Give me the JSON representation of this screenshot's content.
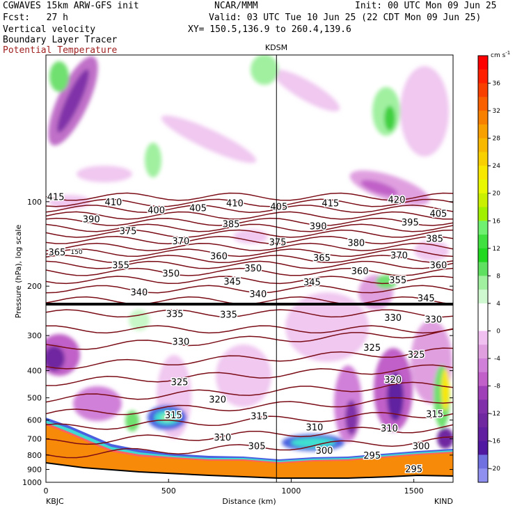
{
  "header": {
    "model": "CGWAVES 15km ARW-GFS init",
    "org": "NCAR/MMM",
    "init": "Init: 00 UTC Mon 09 Jun 25",
    "fcst": "Fcst:   27 h",
    "valid": "Valid: 03 UTC Tue 10 Jun 25 (22 CDT Mon 09 Jun 25)",
    "field1": "Vertical velocity",
    "field2": "Boundary Layer Tracer",
    "field3": "Potential Temperature",
    "xy": "XY= 150.5,136.9 to 260.4,139.6"
  },
  "colors": {
    "theta": "#7a0c16",
    "terrain": "#f88a0a",
    "tropopause": "#000000"
  },
  "chart_data": {
    "type": "heatmap",
    "xlabel": "Distance (km)",
    "ylabel": "Pressure (hPa), log scale",
    "xlim": [
      0,
      1660
    ],
    "ylim": [
      1000,
      30
    ],
    "yscale": "log",
    "x_ticks": [
      "0",
      "500",
      "1000",
      "1500"
    ],
    "y_ticks": [
      "100",
      "200",
      "300",
      "400",
      "500",
      "600",
      "700",
      "800",
      "900",
      "1000"
    ],
    "y_tick_values": [
      100,
      200,
      300,
      400,
      500,
      600,
      700,
      800,
      900,
      1000
    ],
    "x_tick_values": [
      0,
      500,
      1000,
      1500
    ],
    "left_station": "KBJC",
    "right_station": "KIND",
    "mid_station": "KDSM",
    "mid_station_km": 940,
    "colorbar": {
      "unit": "cm s",
      "unit_exp": "-1",
      "labels": [
        "36",
        "32",
        "28",
        "24",
        "20",
        "16",
        "12",
        "8",
        "4",
        "0",
        "-4",
        "-8",
        "-12",
        "-16",
        "-20"
      ],
      "values": [
        36,
        32,
        28,
        24,
        20,
        16,
        12,
        8,
        4,
        0,
        -4,
        -8,
        -12,
        -16,
        -20
      ],
      "colors": [
        "#ff0000",
        "#ff2000",
        "#f84000",
        "#f86000",
        "#f88000",
        "#f8a000",
        "#f8b800",
        "#f8d000",
        "#f8e800",
        "#e8f800",
        "#c8f000",
        "#a0f000",
        "#70f070",
        "#40e040",
        "#20d820",
        "#60e060",
        "#a0f0a0",
        "#d0f8d0",
        "#ffffff",
        "#ffffff",
        "#f0c0f0",
        "#e0a0e0",
        "#d080d8",
        "#c060c8",
        "#a040b8",
        "#8030a8",
        "#7028a0",
        "#6020a0",
        "#5018a0",
        "#7070e0",
        "#9090f0"
      ]
    },
    "theta_labels": [
      {
        "t": "415",
        "x": 40,
        "p": 96
      },
      {
        "t": "410",
        "x": 275,
        "p": 100
      },
      {
        "t": "410",
        "x": 770,
        "p": 101
      },
      {
        "t": "415",
        "x": 1160,
        "p": 101
      },
      {
        "t": "420",
        "x": 1430,
        "p": 98
      },
      {
        "t": "390",
        "x": 185,
        "p": 115
      },
      {
        "t": "400",
        "x": 450,
        "p": 107
      },
      {
        "t": "405",
        "x": 620,
        "p": 105
      },
      {
        "t": "405",
        "x": 950,
        "p": 104
      },
      {
        "t": "405",
        "x": 1600,
        "p": 110
      },
      {
        "t": "395",
        "x": 1485,
        "p": 118
      },
      {
        "t": "385",
        "x": 755,
        "p": 120
      },
      {
        "t": "390",
        "x": 1110,
        "p": 122
      },
      {
        "t": "375",
        "x": 335,
        "p": 127
      },
      {
        "t": "370",
        "x": 550,
        "p": 138
      },
      {
        "t": "375",
        "x": 945,
        "p": 139
      },
      {
        "t": "380",
        "x": 1265,
        "p": 140
      },
      {
        "t": "385",
        "x": 1585,
        "p": 135
      },
      {
        "t": "365",
        "x": 45,
        "p": 151
      },
      {
        "t": "360",
        "x": 705,
        "p": 156
      },
      {
        "t": "365",
        "x": 1125,
        "p": 158
      },
      {
        "t": "370",
        "x": 1440,
        "p": 155
      },
      {
        "t": "355",
        "x": 305,
        "p": 168
      },
      {
        "t": "350",
        "x": 845,
        "p": 172
      },
      {
        "t": "360",
        "x": 1280,
        "p": 176
      },
      {
        "t": "360",
        "x": 1600,
        "p": 168
      },
      {
        "t": "350",
        "x": 510,
        "p": 180
      },
      {
        "t": "345",
        "x": 760,
        "p": 192
      },
      {
        "t": "345",
        "x": 1085,
        "p": 193
      },
      {
        "t": "355",
        "x": 1435,
        "p": 190
      },
      {
        "t": "340",
        "x": 380,
        "p": 210
      },
      {
        "t": "340",
        "x": 865,
        "p": 213
      },
      {
        "t": "345",
        "x": 1550,
        "p": 220
      },
      {
        "t": "335",
        "x": 525,
        "p": 250
      },
      {
        "t": "335",
        "x": 745,
        "p": 252
      },
      {
        "t": "330",
        "x": 1415,
        "p": 258
      },
      {
        "t": "330",
        "x": 1580,
        "p": 262
      },
      {
        "t": "330",
        "x": 550,
        "p": 315
      },
      {
        "t": "325",
        "x": 1330,
        "p": 330
      },
      {
        "t": "325",
        "x": 1510,
        "p": 350
      },
      {
        "t": "320",
        "x": 1415,
        "p": 430
      },
      {
        "t": "325",
        "x": 545,
        "p": 438
      },
      {
        "t": "320",
        "x": 700,
        "p": 505
      },
      {
        "t": "315",
        "x": 520,
        "p": 575
      },
      {
        "t": "315",
        "x": 870,
        "p": 580
      },
      {
        "t": "315",
        "x": 1585,
        "p": 570
      },
      {
        "t": "310",
        "x": 1095,
        "p": 635
      },
      {
        "t": "310",
        "x": 1400,
        "p": 640
      },
      {
        "t": "310",
        "x": 720,
        "p": 690
      },
      {
        "t": "305",
        "x": 860,
        "p": 740
      },
      {
        "t": "300",
        "x": 1530,
        "p": 740
      },
      {
        "t": "300",
        "x": 1135,
        "p": 770
      },
      {
        "t": "295",
        "x": 1330,
        "p": 800
      },
      {
        "t": "295",
        "x": 1500,
        "p": 895
      }
    ],
    "tropopause_label": "150"
  }
}
